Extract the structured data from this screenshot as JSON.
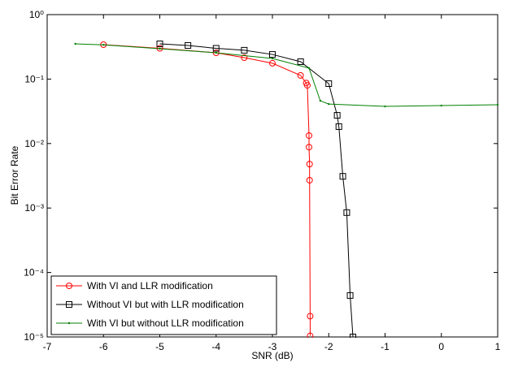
{
  "chart_data": {
    "type": "line",
    "x_label": "SNR (dB)",
    "y_label": "Bit Error Rate",
    "xlim": [
      -7,
      1
    ],
    "xticks": [
      -7,
      -6,
      -5,
      -4,
      -3,
      -2,
      -1,
      0,
      1
    ],
    "ylim": [
      1e-05,
      1
    ],
    "log_y": true,
    "yticks": [
      {
        "value": 1,
        "label": "10⁰"
      },
      {
        "value": 0.1,
        "label": "10⁻¹"
      },
      {
        "value": 0.01,
        "label": "10⁻²"
      },
      {
        "value": 0.001,
        "label": "10⁻³"
      },
      {
        "value": 0.0001,
        "label": "10⁻⁴"
      },
      {
        "value": 1e-05,
        "label": "10⁻⁵"
      }
    ],
    "grid": false,
    "legend": "lower left",
    "series": [
      {
        "name": "With VI and LLR modification",
        "color": "#ff0000",
        "marker": "circle",
        "x": [
          -6,
          -5,
          -4,
          -3.5,
          -3,
          -2.5,
          -2.4,
          -2.38,
          -2.35,
          -2.35,
          -2.34,
          -2.34,
          -2.33,
          -2.33
        ],
        "values": [
          0.342,
          0.3,
          0.256,
          0.215,
          0.176,
          0.114,
          0.087,
          0.08,
          0.0133,
          0.0088,
          0.0048,
          0.0027,
          2.1e-05,
          1.04e-05
        ]
      },
      {
        "name": "Without VI but with LLR modification",
        "color": "#000000",
        "marker": "square",
        "x": [
          -5,
          -4.5,
          -4,
          -3.5,
          -3,
          -2.5,
          -2,
          -1.85,
          -1.82,
          -1.75,
          -1.68,
          -1.62,
          -1.57
        ],
        "values": [
          0.352,
          0.332,
          0.3,
          0.28,
          0.241,
          0.186,
          0.085,
          0.0274,
          0.0183,
          0.0031,
          0.00085,
          4.4e-05,
          1e-05
        ]
      },
      {
        "name": "With VI but without LLR modification",
        "color": "#008000",
        "marker": "dot",
        "x": [
          -6.5,
          -6,
          -5,
          -4,
          -3,
          -2.35,
          -2.15,
          -2,
          -1,
          0,
          1
        ],
        "values": [
          0.352,
          0.34,
          0.296,
          0.256,
          0.209,
          0.148,
          0.046,
          0.041,
          0.0377,
          0.0388,
          0.04
        ]
      }
    ]
  }
}
